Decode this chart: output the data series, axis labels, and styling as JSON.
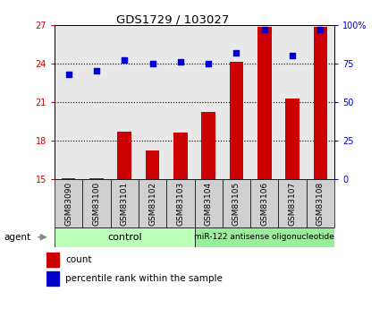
{
  "title": "GDS1729 / 103027",
  "samples": [
    "GSM83090",
    "GSM83100",
    "GSM83101",
    "GSM83102",
    "GSM83103",
    "GSM83104",
    "GSM83105",
    "GSM83106",
    "GSM83107",
    "GSM83108"
  ],
  "count_values": [
    15.1,
    15.1,
    18.7,
    17.2,
    18.6,
    20.2,
    24.1,
    26.8,
    21.3,
    26.8
  ],
  "percentile_values": [
    68,
    70,
    77,
    75,
    76,
    75,
    82,
    97,
    80,
    97
  ],
  "bar_color": "#cc0000",
  "dot_color": "#0000cc",
  "ylim_left": [
    15,
    27
  ],
  "ylim_right": [
    0,
    100
  ],
  "yticks_left": [
    15,
    18,
    21,
    24,
    27
  ],
  "yticks_right": [
    0,
    25,
    50,
    75,
    100
  ],
  "ytick_labels_right": [
    "0",
    "25",
    "50",
    "75",
    "100%"
  ],
  "grid_lines": [
    18,
    21,
    24
  ],
  "control_label": "control",
  "treatment_label": "miR-122 antisense oligonucleotide",
  "agent_label": "agent",
  "legend_count": "count",
  "legend_percentile": "percentile rank within the sample",
  "control_color": "#bbffbb",
  "treatment_color": "#99ee99",
  "n_control": 5,
  "n_treatment": 5,
  "title_color": "#000000",
  "left_axis_color": "#cc0000",
  "right_axis_color": "#0000cc",
  "background_color": "#ffffff",
  "plot_bg_color": "#e8e8e8",
  "xticklabel_bg_color": "#d0d0d0"
}
